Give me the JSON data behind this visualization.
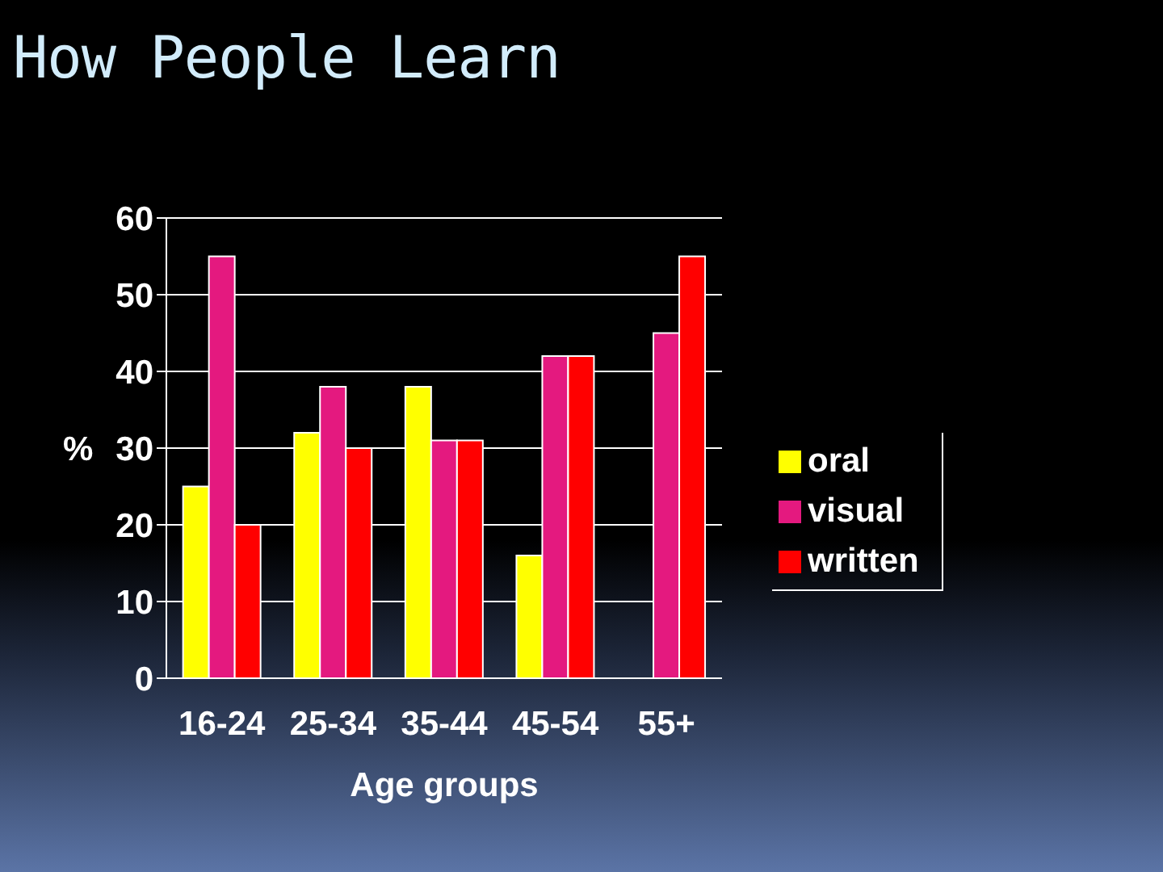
{
  "chart_data": {
    "type": "bar",
    "title": "How People Learn",
    "xlabel": "Age groups",
    "ylabel": "%",
    "categories": [
      "16-24",
      "25-34",
      "35-44",
      "45-54",
      "55+"
    ],
    "series": [
      {
        "name": "oral",
        "color": "#ffff00",
        "values": [
          25,
          32,
          38,
          16,
          0
        ]
      },
      {
        "name": "visual",
        "color": "#e4197f",
        "values": [
          55,
          38,
          31,
          42,
          45
        ]
      },
      {
        "name": "written",
        "color": "#ff0000",
        "values": [
          20,
          30,
          31,
          42,
          55
        ]
      }
    ],
    "ylim": [
      0,
      60
    ],
    "yticks": [
      0,
      10,
      20,
      30,
      40,
      50,
      60
    ],
    "grid": "y",
    "legend": "right"
  }
}
